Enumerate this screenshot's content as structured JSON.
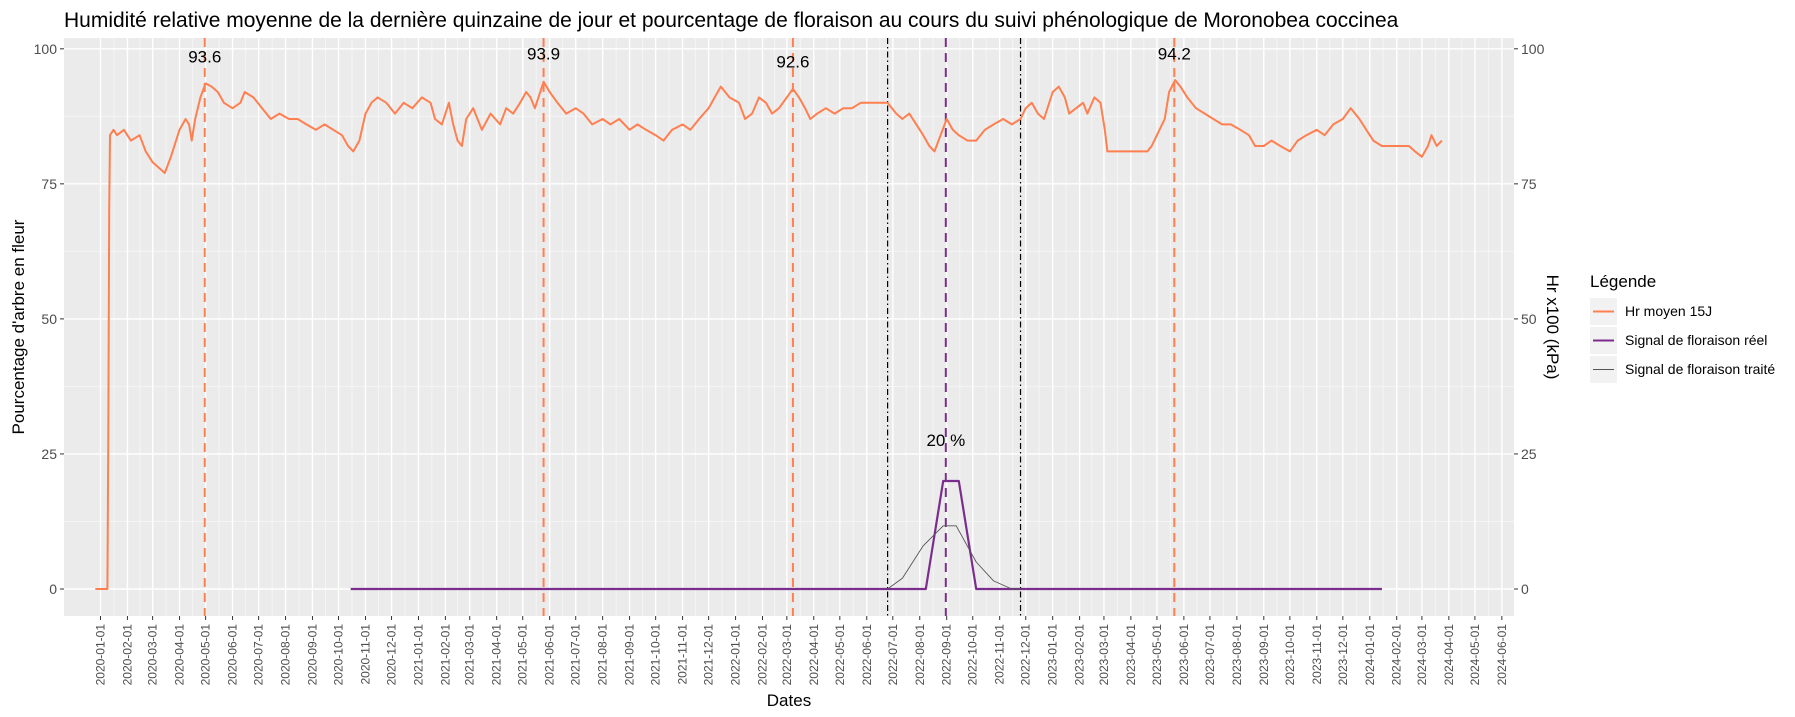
{
  "chart_data": {
    "type": "line",
    "title": "Humidité relative moyenne de la dernière quinzaine de jour et pourcentage de floraison au cours du suivi phénologique de Moronobea coccinea",
    "xlabel": "Dates",
    "ylabel": "Pourcentage d'arbre en fleur",
    "ylabel_right": "Hr x100 (kPa)",
    "ylim": [
      -5,
      102
    ],
    "yticks": [
      0,
      25,
      50,
      75,
      100
    ],
    "xlim": [
      "2019-11-20",
      "2024-06-15"
    ],
    "xticks": [
      "2020-01-01",
      "2020-02-01",
      "2020-03-01",
      "2020-04-01",
      "2020-05-01",
      "2020-06-01",
      "2020-07-01",
      "2020-08-01",
      "2020-09-01",
      "2020-10-01",
      "2020-11-01",
      "2020-12-01",
      "2021-01-01",
      "2021-02-01",
      "2021-03-01",
      "2021-04-01",
      "2021-05-01",
      "2021-06-01",
      "2021-07-01",
      "2021-08-01",
      "2021-09-01",
      "2021-10-01",
      "2021-11-01",
      "2021-12-01",
      "2022-01-01",
      "2022-02-01",
      "2022-03-01",
      "2022-04-01",
      "2022-05-01",
      "2022-06-01",
      "2022-07-01",
      "2022-08-01",
      "2022-09-01",
      "2022-10-01",
      "2022-11-01",
      "2022-12-01",
      "2023-01-01",
      "2023-02-01",
      "2023-03-01",
      "2023-04-01",
      "2023-05-01",
      "2023-06-01",
      "2023-07-01",
      "2023-08-01",
      "2023-09-01",
      "2023-10-01",
      "2023-11-01",
      "2023-12-01",
      "2024-01-01",
      "2024-02-01",
      "2024-03-01",
      "2024-04-01",
      "2024-05-01",
      "2024-06-01"
    ],
    "grid": true,
    "legend": {
      "title": "Légende",
      "position": "right",
      "items": [
        {
          "label": "Hr moyen 15J",
          "color": "#FF7F50"
        },
        {
          "label": "Signal de floraison réel",
          "color": "#7B2D8E"
        },
        {
          "label": "Signal de floraison traité",
          "color": "#555555"
        }
      ]
    },
    "series": [
      {
        "name": "Hr moyen 15J",
        "color": "#FF7F50",
        "points": [
          [
            "2019-12-26",
            0
          ],
          [
            "2020-01-09",
            0
          ],
          [
            "2020-01-10",
            28
          ],
          [
            "2020-01-11",
            70
          ],
          [
            "2020-01-12",
            84
          ],
          [
            "2020-01-16",
            85
          ],
          [
            "2020-01-20",
            84
          ],
          [
            "2020-01-28",
            85
          ],
          [
            "2020-02-05",
            83
          ],
          [
            "2020-02-15",
            84
          ],
          [
            "2020-02-22",
            81
          ],
          [
            "2020-03-01",
            79
          ],
          [
            "2020-03-08",
            78
          ],
          [
            "2020-03-15",
            77
          ],
          [
            "2020-03-22",
            80
          ],
          [
            "2020-04-01",
            85
          ],
          [
            "2020-04-08",
            87
          ],
          [
            "2020-04-12",
            86
          ],
          [
            "2020-04-15",
            83
          ],
          [
            "2020-04-19",
            87
          ],
          [
            "2020-04-25",
            91
          ],
          [
            "2020-05-01",
            93.6
          ],
          [
            "2020-05-08",
            93
          ],
          [
            "2020-05-15",
            92
          ],
          [
            "2020-05-22",
            90
          ],
          [
            "2020-06-01",
            89
          ],
          [
            "2020-06-10",
            90
          ],
          [
            "2020-06-15",
            92
          ],
          [
            "2020-06-25",
            91
          ],
          [
            "2020-07-05",
            89
          ],
          [
            "2020-07-15",
            87
          ],
          [
            "2020-07-25",
            88
          ],
          [
            "2020-08-05",
            87
          ],
          [
            "2020-08-15",
            87
          ],
          [
            "2020-08-25",
            86
          ],
          [
            "2020-09-05",
            85
          ],
          [
            "2020-09-15",
            86
          ],
          [
            "2020-09-25",
            85
          ],
          [
            "2020-10-05",
            84
          ],
          [
            "2020-10-12",
            82
          ],
          [
            "2020-10-18",
            81
          ],
          [
            "2020-10-25",
            83
          ],
          [
            "2020-11-01",
            88
          ],
          [
            "2020-11-08",
            90
          ],
          [
            "2020-11-15",
            91
          ],
          [
            "2020-11-25",
            90
          ],
          [
            "2020-12-05",
            88
          ],
          [
            "2020-12-15",
            90
          ],
          [
            "2020-12-25",
            89
          ],
          [
            "2021-01-05",
            91
          ],
          [
            "2021-01-15",
            90
          ],
          [
            "2021-01-20",
            87
          ],
          [
            "2021-01-28",
            86
          ],
          [
            "2021-02-05",
            90
          ],
          [
            "2021-02-10",
            86
          ],
          [
            "2021-02-15",
            83
          ],
          [
            "2021-02-20",
            82
          ],
          [
            "2021-02-25",
            87
          ],
          [
            "2021-03-05",
            89
          ],
          [
            "2021-03-10",
            87
          ],
          [
            "2021-03-15",
            85
          ],
          [
            "2021-03-25",
            88
          ],
          [
            "2021-04-05",
            86
          ],
          [
            "2021-04-12",
            89
          ],
          [
            "2021-04-20",
            88
          ],
          [
            "2021-04-28",
            90
          ],
          [
            "2021-05-05",
            92
          ],
          [
            "2021-05-10",
            91
          ],
          [
            "2021-05-15",
            89
          ],
          [
            "2021-05-25",
            93.9
          ],
          [
            "2021-06-01",
            92
          ],
          [
            "2021-06-10",
            90
          ],
          [
            "2021-06-20",
            88
          ],
          [
            "2021-07-01",
            89
          ],
          [
            "2021-07-10",
            88
          ],
          [
            "2021-07-20",
            86
          ],
          [
            "2021-08-01",
            87
          ],
          [
            "2021-08-10",
            86
          ],
          [
            "2021-08-20",
            87
          ],
          [
            "2021-09-01",
            85
          ],
          [
            "2021-09-10",
            86
          ],
          [
            "2021-09-20",
            85
          ],
          [
            "2021-10-01",
            84
          ],
          [
            "2021-10-10",
            83
          ],
          [
            "2021-10-20",
            85
          ],
          [
            "2021-11-01",
            86
          ],
          [
            "2021-11-10",
            85
          ],
          [
            "2021-11-20",
            87
          ],
          [
            "2021-12-01",
            89
          ],
          [
            "2021-12-08",
            91
          ],
          [
            "2021-12-15",
            93
          ],
          [
            "2021-12-25",
            91
          ],
          [
            "2022-01-05",
            90
          ],
          [
            "2022-01-12",
            87
          ],
          [
            "2022-01-20",
            88
          ],
          [
            "2022-01-28",
            91
          ],
          [
            "2022-02-05",
            90
          ],
          [
            "2022-02-12",
            88
          ],
          [
            "2022-02-20",
            89
          ],
          [
            "2022-03-01",
            91
          ],
          [
            "2022-03-08",
            92.6
          ],
          [
            "2022-03-15",
            91
          ],
          [
            "2022-03-22",
            89
          ],
          [
            "2022-03-28",
            87
          ],
          [
            "2022-04-05",
            88
          ],
          [
            "2022-04-15",
            89
          ],
          [
            "2022-04-25",
            88
          ],
          [
            "2022-05-05",
            89
          ],
          [
            "2022-05-15",
            89
          ],
          [
            "2022-05-25",
            90
          ],
          [
            "2022-06-05",
            90
          ],
          [
            "2022-06-15",
            90
          ],
          [
            "2022-06-25",
            90
          ],
          [
            "2022-07-05",
            88
          ],
          [
            "2022-07-12",
            87
          ],
          [
            "2022-07-20",
            88
          ],
          [
            "2022-07-28",
            86
          ],
          [
            "2022-08-05",
            84
          ],
          [
            "2022-08-12",
            82
          ],
          [
            "2022-08-18",
            81
          ],
          [
            "2022-08-25",
            84
          ],
          [
            "2022-09-01",
            87
          ],
          [
            "2022-09-08",
            85
          ],
          [
            "2022-09-15",
            84
          ],
          [
            "2022-09-25",
            83
          ],
          [
            "2022-10-05",
            83
          ],
          [
            "2022-10-15",
            85
          ],
          [
            "2022-10-25",
            86
          ],
          [
            "2022-11-05",
            87
          ],
          [
            "2022-11-15",
            86
          ],
          [
            "2022-11-25",
            87
          ],
          [
            "2022-12-01",
            89
          ],
          [
            "2022-12-08",
            90
          ],
          [
            "2022-12-15",
            88
          ],
          [
            "2022-12-22",
            87
          ],
          [
            "2023-01-01",
            92
          ],
          [
            "2023-01-08",
            93
          ],
          [
            "2023-01-15",
            91
          ],
          [
            "2023-01-20",
            88
          ],
          [
            "2023-01-28",
            89
          ],
          [
            "2023-02-05",
            90
          ],
          [
            "2023-02-10",
            88
          ],
          [
            "2023-02-18",
            91
          ],
          [
            "2023-02-25",
            90
          ],
          [
            "2023-03-02",
            85
          ],
          [
            "2023-03-05",
            81
          ],
          [
            "2023-03-15",
            81
          ],
          [
            "2023-03-25",
            81
          ],
          [
            "2023-04-05",
            81
          ],
          [
            "2023-04-20",
            81
          ],
          [
            "2023-04-25",
            82
          ],
          [
            "2023-05-01",
            84
          ],
          [
            "2023-05-10",
            87
          ],
          [
            "2023-05-15",
            92
          ],
          [
            "2023-05-22",
            94.2
          ],
          [
            "2023-05-28",
            93
          ],
          [
            "2023-06-05",
            91
          ],
          [
            "2023-06-15",
            89
          ],
          [
            "2023-06-25",
            88
          ],
          [
            "2023-07-05",
            87
          ],
          [
            "2023-07-15",
            86
          ],
          [
            "2023-07-25",
            86
          ],
          [
            "2023-08-05",
            85
          ],
          [
            "2023-08-15",
            84
          ],
          [
            "2023-08-22",
            82
          ],
          [
            "2023-09-01",
            82
          ],
          [
            "2023-09-10",
            83
          ],
          [
            "2023-09-20",
            82
          ],
          [
            "2023-10-01",
            81
          ],
          [
            "2023-10-10",
            83
          ],
          [
            "2023-10-20",
            84
          ],
          [
            "2023-11-01",
            85
          ],
          [
            "2023-11-10",
            84
          ],
          [
            "2023-11-20",
            86
          ],
          [
            "2023-12-01",
            87
          ],
          [
            "2023-12-10",
            89
          ],
          [
            "2023-12-20",
            87
          ],
          [
            "2023-12-28",
            85
          ],
          [
            "2024-01-05",
            83
          ],
          [
            "2024-01-15",
            82
          ],
          [
            "2024-01-25",
            82
          ],
          [
            "2024-02-05",
            82
          ],
          [
            "2024-02-15",
            82
          ],
          [
            "2024-02-22",
            81
          ],
          [
            "2024-03-01",
            80
          ],
          [
            "2024-03-08",
            82
          ],
          [
            "2024-03-12",
            84
          ],
          [
            "2024-03-18",
            82
          ],
          [
            "2024-03-24",
            83
          ]
        ]
      },
      {
        "name": "Signal de floraison réel",
        "color": "#7B2D8E",
        "points": [
          [
            "2020-10-15",
            0
          ],
          [
            "2022-08-08",
            0
          ],
          [
            "2022-08-28",
            20
          ],
          [
            "2022-09-15",
            20
          ],
          [
            "2022-10-05",
            0
          ],
          [
            "2024-01-15",
            0
          ]
        ]
      },
      {
        "name": "Signal de floraison traité",
        "color": "#555555",
        "points": [
          [
            "2022-06-25",
            0
          ],
          [
            "2022-07-12",
            2
          ],
          [
            "2022-08-05",
            8
          ],
          [
            "2022-08-28",
            11.7
          ],
          [
            "2022-09-12",
            11.7
          ],
          [
            "2022-10-05",
            5
          ],
          [
            "2022-10-25",
            1.5
          ],
          [
            "2022-11-15",
            0
          ],
          [
            "2022-11-25",
            0
          ]
        ]
      }
    ],
    "vlines": [
      {
        "date": "2020-04-30",
        "color": "#FF7F50",
        "style": "dashed"
      },
      {
        "date": "2021-05-25",
        "color": "#FF7F50",
        "style": "dashed"
      },
      {
        "date": "2022-03-08",
        "color": "#FF7F50",
        "style": "dashed"
      },
      {
        "date": "2023-05-21",
        "color": "#FF7F50",
        "style": "dashed"
      },
      {
        "date": "2022-08-31",
        "color": "#7B2D8E",
        "style": "dashed"
      },
      {
        "date": "2022-06-25",
        "color": "#000000",
        "style": "dotdash"
      },
      {
        "date": "2022-11-25",
        "color": "#000000",
        "style": "dotdash"
      }
    ],
    "annotations": [
      {
        "date": "2020-04-30",
        "y": 97.5,
        "text": "93.6"
      },
      {
        "date": "2021-05-25",
        "y": 98,
        "text": "93.9"
      },
      {
        "date": "2022-03-08",
        "y": 96.5,
        "text": "92.6"
      },
      {
        "date": "2023-05-21",
        "y": 98,
        "text": "94.2"
      },
      {
        "date": "2022-08-31",
        "y": 26.5,
        "text": "20 %"
      }
    ]
  }
}
